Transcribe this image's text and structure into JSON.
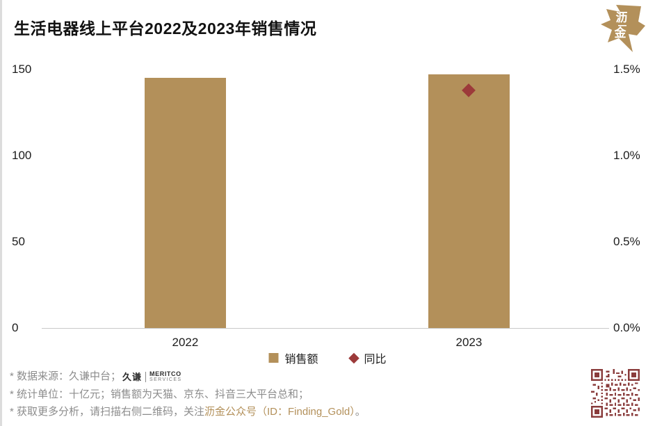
{
  "header": {
    "title": "生活电器线上平台2022及2023年销售情况",
    "brand_logo": {
      "char_top": "沥",
      "char_bottom": "金"
    }
  },
  "colors": {
    "accent": "#b3905a",
    "marker": "#9c3a3a",
    "qr": "#8a3c3c"
  },
  "chart_data": {
    "type": "bar",
    "title": "生活电器线上平台2022及2023年销售情况",
    "categories": [
      "2022",
      "2023"
    ],
    "series": [
      {
        "name": "销售额",
        "type": "bar",
        "axis": "left",
        "values": [
          145,
          147
        ],
        "color": "#b3905a"
      },
      {
        "name": "同比",
        "type": "scatter",
        "axis": "right",
        "values": [
          null,
          1.38
        ],
        "color": "#9c3a3a"
      }
    ],
    "left_axis": {
      "min": 0,
      "max": 150,
      "labels_top_to_bottom": [
        "150",
        "100",
        "50",
        "0"
      ]
    },
    "right_axis": {
      "min": 0,
      "max": 1.5,
      "labels_top_to_bottom": [
        "1.5%",
        "1.0%",
        "0.5%",
        "0.0%"
      ]
    },
    "grid": "off",
    "legend_position": "bottom",
    "unit": "十亿元"
  },
  "footnotes": {
    "line1_text": "* 数据来源：久谦中台；",
    "line1_logo_cn": "久谦",
    "line1_logo_en1": "MERITCO",
    "line1_logo_en2": "SERVICES",
    "line2_text": "* 统计单位：十亿元；销售额为天猫、京东、抖音三大平台总和；",
    "line3_prefix": "* 获取更多分析，请扫描右侧二维码，关注",
    "line3_highlight": "沥金公众号（ID：Finding_Gold）",
    "line3_suffix": "。"
  }
}
